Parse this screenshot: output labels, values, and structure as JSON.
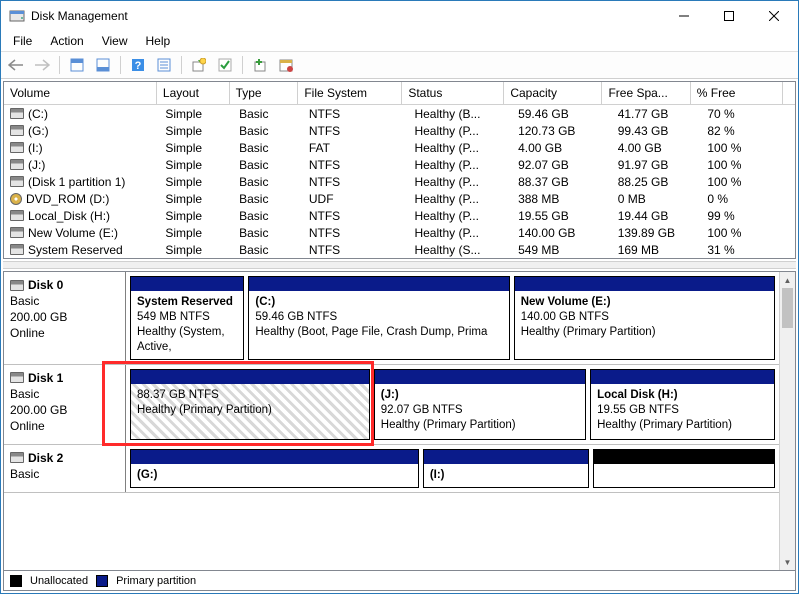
{
  "window": {
    "title": "Disk Management"
  },
  "menu": {
    "file": "File",
    "action": "Action",
    "view": "View",
    "help": "Help"
  },
  "columns": {
    "volume": "Volume",
    "layout": "Layout",
    "type": "Type",
    "fs": "File System",
    "status": "Status",
    "capacity": "Capacity",
    "free": "Free Spa...",
    "pct": "% Free"
  },
  "volumes": [
    {
      "name": "(C:)",
      "layout": "Simple",
      "type": "Basic",
      "fs": "NTFS",
      "status": "Healthy (B...",
      "capacity": "59.46 GB",
      "free": "41.77 GB",
      "pct": "70 %",
      "icon": "drive"
    },
    {
      "name": "(G:)",
      "layout": "Simple",
      "type": "Basic",
      "fs": "NTFS",
      "status": "Healthy (P...",
      "capacity": "120.73 GB",
      "free": "99.43 GB",
      "pct": "82 %",
      "icon": "drive"
    },
    {
      "name": "(I:)",
      "layout": "Simple",
      "type": "Basic",
      "fs": "FAT",
      "status": "Healthy (P...",
      "capacity": "4.00 GB",
      "free": "4.00 GB",
      "pct": "100 %",
      "icon": "drive"
    },
    {
      "name": "(J:)",
      "layout": "Simple",
      "type": "Basic",
      "fs": "NTFS",
      "status": "Healthy (P...",
      "capacity": "92.07 GB",
      "free": "91.97 GB",
      "pct": "100 %",
      "icon": "drive"
    },
    {
      "name": "(Disk 1 partition 1)",
      "layout": "Simple",
      "type": "Basic",
      "fs": "NTFS",
      "status": "Healthy (P...",
      "capacity": "88.37 GB",
      "free": "88.25 GB",
      "pct": "100 %",
      "icon": "drive"
    },
    {
      "name": "DVD_ROM (D:)",
      "layout": "Simple",
      "type": "Basic",
      "fs": "UDF",
      "status": "Healthy (P...",
      "capacity": "388 MB",
      "free": "0 MB",
      "pct": "0 %",
      "icon": "disc"
    },
    {
      "name": "Local_Disk (H:)",
      "layout": "Simple",
      "type": "Basic",
      "fs": "NTFS",
      "status": "Healthy (P...",
      "capacity": "19.55 GB",
      "free": "19.44 GB",
      "pct": "99 %",
      "icon": "drive"
    },
    {
      "name": "New Volume (E:)",
      "layout": "Simple",
      "type": "Basic",
      "fs": "NTFS",
      "status": "Healthy (P...",
      "capacity": "140.00 GB",
      "free": "139.89 GB",
      "pct": "100 %",
      "icon": "drive"
    },
    {
      "name": "System Reserved",
      "layout": "Simple",
      "type": "Basic",
      "fs": "NTFS",
      "status": "Healthy (S...",
      "capacity": "549 MB",
      "free": "169 MB",
      "pct": "31 %",
      "icon": "drive"
    }
  ],
  "disks": [
    {
      "name": "Disk 0",
      "type": "Basic",
      "size": "200.00 GB",
      "state": "Online",
      "parts": [
        {
          "title": "System Reserved",
          "sub": "549 MB NTFS",
          "health": "Healthy (System, Active,",
          "flex": "1.3"
        },
        {
          "title": "(C:)",
          "sub": "59.46 GB NTFS",
          "health": "Healthy (Boot, Page File, Crash Dump, Prima",
          "flex": "3"
        },
        {
          "title": "New Volume  (E:)",
          "sub": "140.00 GB NTFS",
          "health": "Healthy (Primary Partition)",
          "flex": "3"
        }
      ]
    },
    {
      "name": "Disk 1",
      "type": "Basic",
      "size": "200.00 GB",
      "state": "Online",
      "parts": [
        {
          "title": "",
          "sub": "88.37 GB NTFS",
          "health": "Healthy (Primary Partition)",
          "flex": "2.6",
          "hatched": true
        },
        {
          "title": "(J:)",
          "sub": "92.07 GB NTFS",
          "health": "Healthy (Primary Partition)",
          "flex": "2.3"
        },
        {
          "title": "Local Disk  (H:)",
          "sub": "19.55 GB NTFS",
          "health": "Healthy (Primary Partition)",
          "flex": "2"
        }
      ]
    },
    {
      "name": "Disk 2",
      "type": "Basic",
      "size": "",
      "state": "",
      "parts": [
        {
          "title": "(G:)",
          "sub": "",
          "health": "",
          "flex": "3.5"
        },
        {
          "title": "(I:)",
          "sub": "",
          "health": "",
          "flex": "2"
        },
        {
          "title": "",
          "sub": "",
          "health": "",
          "flex": "2.2",
          "unalloc": true
        }
      ],
      "short": true
    }
  ],
  "legend": {
    "unalloc": "Unallocated",
    "primary": "Primary partition"
  },
  "colors": {
    "stripe_primary": "#0a1b8a",
    "stripe_unalloc": "#000000",
    "highlight": "#ff2a2a"
  }
}
